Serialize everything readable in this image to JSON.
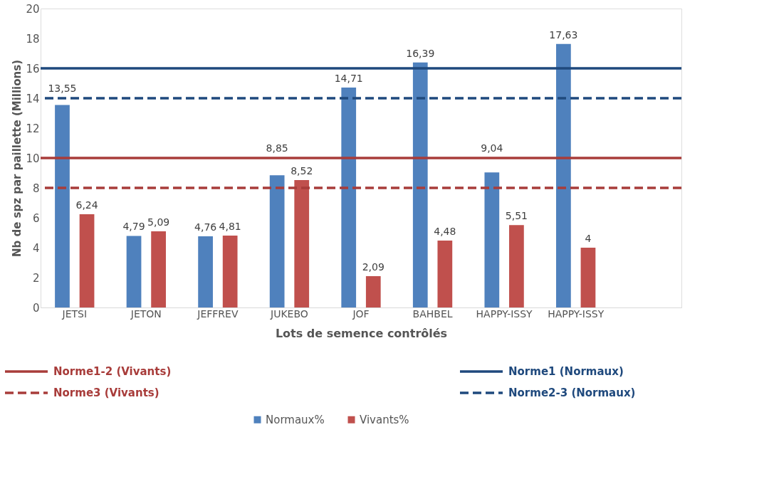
{
  "chart_data": {
    "type": "bar",
    "xlabel": "Lots de semence contrôlés",
    "ylabel": "Nb de spz par paillette (Millions)",
    "categories": [
      "JETSI",
      "JETON",
      "JEFFREV",
      "JUKEBO",
      "JOF",
      "BAHBEL",
      "HAPPY-ISSY",
      "HAPPY-ISSY",
      null
    ],
    "series": [
      {
        "name": "Normaux%",
        "color": "#4f81bd",
        "values": [
          13.55,
          4.79,
          4.76,
          8.85,
          14.71,
          16.39,
          9.04,
          17.63,
          null
        ],
        "value_labels": [
          "13,55",
          "4,79",
          "4,76",
          "8,85",
          "14,71",
          "16,39",
          "9,04",
          "17,63",
          null
        ]
      },
      {
        "name": "Vivants%",
        "color": "#c0504d",
        "values": [
          6.24,
          5.09,
          4.81,
          8.52,
          2.09,
          4.48,
          5.51,
          4,
          null
        ],
        "value_labels": [
          "6,24",
          "5,09",
          "4,81",
          "8,52",
          "2,09",
          "4,48",
          "5,51",
          "4",
          null
        ]
      }
    ],
    "ylim": [
      0,
      20
    ],
    "yticks": [
      0,
      2,
      4,
      6,
      8,
      10,
      12,
      14,
      16,
      18,
      20
    ],
    "grid": false,
    "legend": "bottom",
    "ref_lines": [
      {
        "axis": "y",
        "value": 10,
        "label": "Norme1-2 (Vivants)",
        "color": "#a83c3a",
        "line_style": "solid"
      },
      {
        "axis": "y",
        "value": 8,
        "label": "Norme3 (Vivants)",
        "color": "#a83c3a",
        "line_style": "dashed"
      },
      {
        "axis": "y",
        "value": 16,
        "label": "Norme1 (Normaux)",
        "color": "#1f497d",
        "line_style": "solid"
      },
      {
        "axis": "y",
        "value": 14,
        "label": "Norme2-3 (Normaux)",
        "color": "#1f497d",
        "line_style": "dashed"
      }
    ]
  }
}
